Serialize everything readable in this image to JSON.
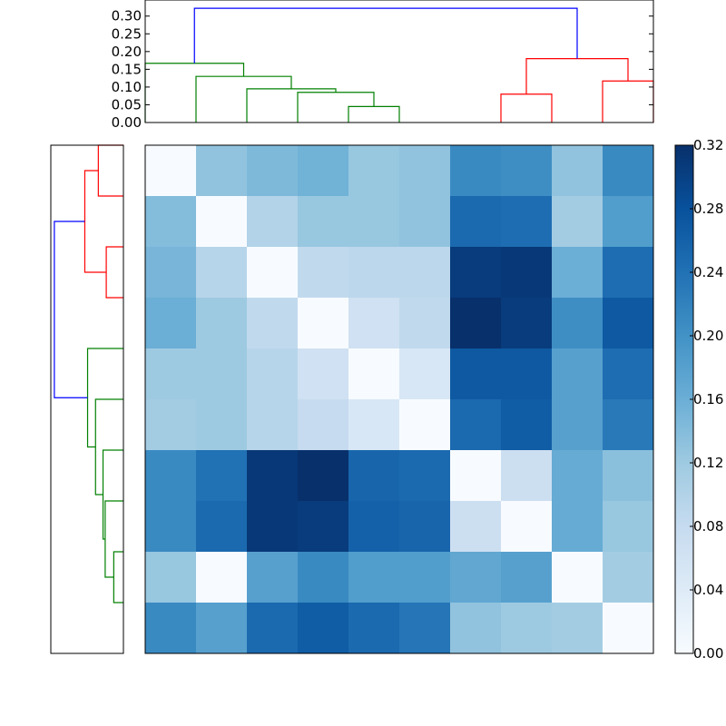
{
  "chart_data": [
    {
      "type": "dendrogram",
      "orientation": "top",
      "yticks": [
        "0.00",
        "0.05",
        "0.10",
        "0.15",
        "0.20",
        "0.25",
        "0.30"
      ],
      "yticks_values": [
        0.0,
        0.05,
        0.1,
        0.15,
        0.2,
        0.25,
        0.3
      ],
      "ylim": [
        0.0,
        0.33
      ],
      "n_leaves": 10,
      "links": [
        {
          "x": [
            3.5,
            3.5,
            4.5,
            4.5
          ],
          "y": [
            0.0,
            0.045,
            0.045,
            0.0
          ],
          "color": "#008000"
        },
        {
          "x": [
            2.5,
            2.5,
            4.0,
            4.0
          ],
          "y": [
            0.0,
            0.085,
            0.085,
            0.045
          ],
          "color": "#008000"
        },
        {
          "x": [
            1.5,
            1.5,
            3.25,
            3.25
          ],
          "y": [
            0.0,
            0.095,
            0.095,
            0.085
          ],
          "color": "#008000"
        },
        {
          "x": [
            0.5,
            0.5,
            2.375,
            2.375
          ],
          "y": [
            0.0,
            0.13,
            0.13,
            0.095
          ],
          "color": "#008000"
        },
        {
          "x": [
            -0.5,
            -0.5,
            1.4375,
            1.4375
          ],
          "y": [
            0.0,
            0.167,
            0.167,
            0.13
          ],
          "color": "#008000"
        },
        {
          "x": [
            6.5,
            6.5,
            7.5,
            7.5
          ],
          "y": [
            0.0,
            0.08,
            0.08,
            0.0
          ],
          "color": "#ff0000"
        },
        {
          "x": [
            8.5,
            8.5,
            9.5,
            9.5
          ],
          "y": [
            0.0,
            0.117,
            0.117,
            0.0
          ],
          "color": "#ff0000"
        },
        {
          "x": [
            7.0,
            7.0,
            9.0,
            9.0
          ],
          "y": [
            0.08,
            0.18,
            0.18,
            0.117
          ],
          "color": "#ff0000"
        },
        {
          "x": [
            0.46875,
            0.46875,
            8.0,
            8.0
          ],
          "y": [
            0.167,
            0.322,
            0.322,
            0.18
          ],
          "color": "#0000ff"
        }
      ]
    },
    {
      "type": "dendrogram",
      "orientation": "left",
      "n_leaves": 10,
      "links": [
        {
          "y": [
            0.5,
            0.5,
            1.5,
            1.5
          ],
          "x": [
            0.0,
            0.045,
            0.045,
            0.0
          ],
          "color": "#008000"
        },
        {
          "y": [
            1.0,
            1.0,
            2.5,
            2.5
          ],
          "x": [
            0.045,
            0.085,
            0.085,
            0.0
          ],
          "color": "#008000"
        },
        {
          "y": [
            1.75,
            1.75,
            3.5,
            3.5
          ],
          "x": [
            0.085,
            0.095,
            0.095,
            0.0
          ],
          "color": "#008000"
        },
        {
          "y": [
            2.625,
            2.625,
            4.5,
            4.5
          ],
          "x": [
            0.095,
            0.13,
            0.13,
            0.0
          ],
          "color": "#008000"
        },
        {
          "y": [
            3.5625,
            3.5625,
            5.5,
            5.5
          ],
          "x": [
            0.13,
            0.167,
            0.167,
            0.0
          ],
          "color": "#008000"
        },
        {
          "y": [
            6.5,
            6.5,
            7.5,
            7.5
          ],
          "x": [
            0.0,
            0.08,
            0.08,
            0.0
          ],
          "color": "#ff0000"
        },
        {
          "y": [
            8.5,
            8.5,
            9.5,
            9.5
          ],
          "x": [
            0.0,
            0.117,
            0.117,
            0.0
          ],
          "color": "#ff0000"
        },
        {
          "y": [
            7.0,
            7.0,
            9.0,
            9.0
          ],
          "x": [
            0.08,
            0.18,
            0.18,
            0.117
          ],
          "color": "#ff0000"
        },
        {
          "y": [
            4.53125,
            4.53125,
            8.0,
            8.0
          ],
          "x": [
            0.167,
            0.322,
            0.322,
            0.18
          ],
          "color": "#0000ff"
        }
      ]
    },
    {
      "type": "heatmap",
      "rows": 10,
      "cols": 10,
      "colormap": "Blues",
      "vmin": 0.0,
      "vmax": 0.32,
      "values": [
        [
          0.0,
          0.13,
          0.145,
          0.155,
          0.125,
          0.13,
          0.21,
          0.205,
          0.13,
          0.21
        ],
        [
          0.14,
          0.0,
          0.1,
          0.125,
          0.125,
          0.13,
          0.25,
          0.245,
          0.115,
          0.185
        ],
        [
          0.15,
          0.095,
          0.0,
          0.085,
          0.09,
          0.09,
          0.305,
          0.31,
          0.16,
          0.245
        ],
        [
          0.16,
          0.12,
          0.085,
          0.0,
          0.065,
          0.085,
          0.32,
          0.305,
          0.205,
          0.27
        ],
        [
          0.12,
          0.12,
          0.095,
          0.065,
          0.0,
          0.05,
          0.27,
          0.27,
          0.18,
          0.245
        ],
        [
          0.115,
          0.12,
          0.095,
          0.08,
          0.05,
          0.0,
          0.25,
          0.265,
          0.18,
          0.23
        ],
        [
          0.21,
          0.24,
          0.31,
          0.32,
          0.255,
          0.25,
          0.0,
          0.07,
          0.165,
          0.135
        ],
        [
          0.21,
          0.25,
          0.31,
          0.305,
          0.26,
          0.255,
          0.07,
          0.0,
          0.165,
          0.125
        ],
        [
          0.125,
          0.0,
          0.18,
          0.21,
          0.185,
          0.185,
          0.17,
          0.18,
          0.0,
          0.115
        ],
        [
          0.21,
          0.18,
          0.25,
          0.265,
          0.25,
          0.235,
          0.13,
          0.12,
          0.115,
          0.0
        ]
      ]
    },
    {
      "type": "colorbar",
      "colormap": "Blues",
      "range": [
        0.0,
        0.32
      ],
      "ticks": [
        "0.00",
        "0.04",
        "0.08",
        "0.12",
        "0.16",
        "0.20",
        "0.24",
        "0.28",
        "0.32"
      ],
      "ticks_values": [
        0.0,
        0.04,
        0.08,
        0.12,
        0.16,
        0.2,
        0.24,
        0.28,
        0.32
      ]
    }
  ]
}
